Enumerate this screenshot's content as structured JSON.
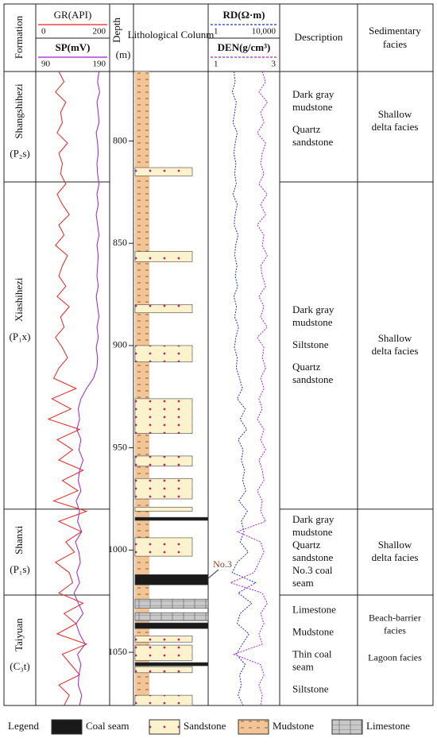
{
  "chart_data": {
    "type": "well-log",
    "headers": {
      "formation": "Formation",
      "depth": "Depth",
      "depth_unit": "(m)",
      "lithology": "Lithological Colunm",
      "description": "Description",
      "facies": [
        "Sedimentary",
        "facies"
      ]
    },
    "ylim": [
      766,
      1076
    ],
    "yticks": [
      800,
      850,
      900,
      950,
      1000,
      1050
    ],
    "depth": [
      766,
      771,
      776,
      781,
      786,
      791,
      796,
      801,
      806,
      811,
      816,
      821,
      826,
      831,
      836,
      841,
      846,
      851,
      856,
      861,
      866,
      871,
      876,
      881,
      886,
      891,
      896,
      901,
      906,
      911,
      916,
      921,
      926,
      931,
      936,
      941,
      946,
      951,
      956,
      961,
      966,
      971,
      976,
      981,
      986,
      991,
      996,
      1001,
      1006,
      1011,
      1016,
      1021,
      1026,
      1031,
      1036,
      1041,
      1046,
      1051,
      1056,
      1061,
      1066,
      1071,
      1076
    ],
    "curves": [
      {
        "name": "GR(API)",
        "color": "#e8231f",
        "xlim": [
          0,
          200
        ],
        "xticks": [
          0,
          200
        ],
        "values": [
          60,
          75,
          50,
          80,
          65,
          70,
          55,
          85,
          60,
          70,
          65,
          80,
          55,
          70,
          90,
          60,
          75,
          50,
          85,
          70,
          60,
          80,
          55,
          90,
          65,
          75,
          50,
          70,
          85,
          60,
          45,
          110,
          40,
          95,
          30,
          120,
          55,
          100,
          60,
          130,
          70,
          115,
          45,
          140,
          60,
          125,
          80,
          105,
          50,
          90,
          100,
          60,
          130,
          75,
          110,
          55,
          140,
          70,
          95,
          120,
          60,
          90,
          75
        ]
      },
      {
        "name": "SP(mV)",
        "color": "#a020c0",
        "xlim": [
          90,
          190
        ],
        "xticks": [
          90,
          190
        ],
        "values": [
          178,
          176,
          179,
          175,
          177,
          178,
          174,
          176,
          177,
          175,
          176,
          178,
          175,
          177,
          174,
          176,
          178,
          175,
          177,
          176,
          175,
          177,
          174,
          176,
          178,
          175,
          177,
          174,
          176,
          175,
          170,
          160,
          152,
          148,
          150,
          146,
          152,
          149,
          155,
          150,
          148,
          152,
          145,
          150,
          147,
          153,
          144,
          149,
          151,
          146,
          150,
          142,
          148,
          155,
          145,
          150,
          158,
          147,
          152,
          149,
          148,
          153,
          150
        ]
      },
      {
        "name": "RD(Ω·m)",
        "color": "#1f2fd6",
        "log": true,
        "dashed": true,
        "xlim": [
          1,
          10000
        ],
        "xticks": [
          1,
          {
            "value": 10000,
            "label": "10,000"
          }
        ],
        "values": [
          25,
          30,
          20,
          35,
          28,
          22,
          40,
          30,
          25,
          33,
          28,
          35,
          22,
          40,
          30,
          26,
          45,
          32,
          28,
          38,
          30,
          42,
          25,
          36,
          28,
          48,
          33,
          27,
          40,
          35,
          55,
          80,
          40,
          120,
          60,
          150,
          45,
          90,
          70,
          110,
          85,
          130,
          50,
          160,
          70,
          100,
          60,
          180,
          40,
          20,
          500,
          45,
          300,
          60,
          40,
          200,
          80,
          35,
          120,
          55,
          70,
          45,
          90
        ]
      },
      {
        "name": "DEN(g/cm³)",
        "color": "#b020d0",
        "dashed": true,
        "xlim": [
          1,
          3
        ],
        "xticks": [
          1,
          3
        ],
        "values": [
          2.55,
          2.65,
          2.45,
          2.7,
          2.5,
          2.6,
          2.4,
          2.65,
          2.55,
          2.5,
          2.6,
          2.45,
          2.7,
          2.5,
          2.65,
          2.4,
          2.6,
          2.55,
          2.7,
          2.5,
          2.55,
          2.65,
          2.45,
          2.6,
          2.5,
          2.7,
          2.4,
          2.6,
          2.55,
          2.65,
          2.5,
          2.6,
          2.45,
          2.55,
          2.4,
          2.6,
          2.5,
          2.65,
          2.45,
          2.55,
          2.6,
          2.4,
          2.55,
          2.5,
          2.65,
          1.8,
          2.5,
          2.6,
          2.45,
          2.3,
          1.6,
          2.55,
          2.7,
          2.5,
          2.6,
          2.45,
          2.55,
          1.7,
          2.5,
          2.6,
          2.45,
          2.55,
          2.5
        ]
      }
    ],
    "formations": [
      {
        "name": "Shangshihezi",
        "code": "(P₂s)",
        "top": 766,
        "base": 820,
        "description": [
          [
            "Dark gray",
            "mudstone"
          ],
          [
            "Quartz",
            "sandstone"
          ]
        ],
        "facies": [
          [
            "Shallow",
            "delta facies"
          ]
        ]
      },
      {
        "name": "Xiashihezi",
        "code": "(P₁x)",
        "top": 820,
        "base": 980,
        "description": [
          [
            "Dark gray",
            "mudstone"
          ],
          [
            "Siltstone"
          ],
          [
            "Quartz",
            "sandstone"
          ]
        ],
        "facies": [
          [
            "Shallow",
            "delta facies"
          ]
        ]
      },
      {
        "name": "Shanxi",
        "code": "(P₁s)",
        "top": 980,
        "base": 1022,
        "description": [
          [
            "Dark gray",
            "mudstone"
          ],
          [
            "Quartz",
            "sandstone"
          ],
          [
            "No.3 coal",
            "seam"
          ]
        ],
        "facies": [
          [
            "Shallow",
            "delta facies"
          ]
        ]
      },
      {
        "name": "Taiyuan",
        "code": "(C₃t)",
        "top": 1022,
        "base": 1076,
        "description": [
          [
            "Limestone"
          ],
          [
            "Mudstone"
          ],
          [
            "Thin coal",
            "seam"
          ],
          [
            "Siltstone"
          ]
        ],
        "facies": [
          [
            "Beach-barrier",
            "facies"
          ],
          [
            "Lagoon facies"
          ]
        ]
      }
    ],
    "lithology": [
      {
        "lith": "Mudstone",
        "top": 766,
        "base": 1076
      },
      {
        "lith": "Sandstone",
        "top": 813,
        "base": 817
      },
      {
        "lith": "Sandstone",
        "top": 854,
        "base": 859
      },
      {
        "lith": "Sandstone",
        "top": 880,
        "base": 884
      },
      {
        "lith": "Sandstone",
        "top": 900,
        "base": 908
      },
      {
        "lith": "Sandstone",
        "top": 926,
        "base": 943
      },
      {
        "lith": "Sandstone",
        "top": 954,
        "base": 959
      },
      {
        "lith": "Sandstone",
        "top": 965,
        "base": 975
      },
      {
        "lith": "Sandstone",
        "top": 979,
        "base": 981
      },
      {
        "lith": "Coal seam",
        "top": 984,
        "base": 985.5
      },
      {
        "lith": "Sandstone",
        "top": 994,
        "base": 1003
      },
      {
        "lith": "Coal seam",
        "top": 1012,
        "base": 1017
      },
      {
        "lith": "Limestone",
        "top": 1024,
        "base": 1028.5
      },
      {
        "lith": "Limestone",
        "top": 1030.6,
        "base": 1034.5
      },
      {
        "lith": "Coal seam",
        "top": 1035.6,
        "base": 1038.4
      },
      {
        "lith": "Sandstone",
        "top": 1042,
        "base": 1045
      },
      {
        "lith": "Sandstone",
        "top": 1046.5,
        "base": 1054
      },
      {
        "lith": "Coal seam",
        "top": 1055,
        "base": 1056.6
      },
      {
        "lith": "Sandstone",
        "top": 1057,
        "base": 1060
      },
      {
        "lith": "Sandstone",
        "top": 1071,
        "base": 1076
      }
    ],
    "annotation": "No.3",
    "legend": {
      "title": "Legend",
      "items": [
        "Coal seam",
        "Sandstone",
        "Mudstone",
        "Limestone"
      ]
    }
  }
}
